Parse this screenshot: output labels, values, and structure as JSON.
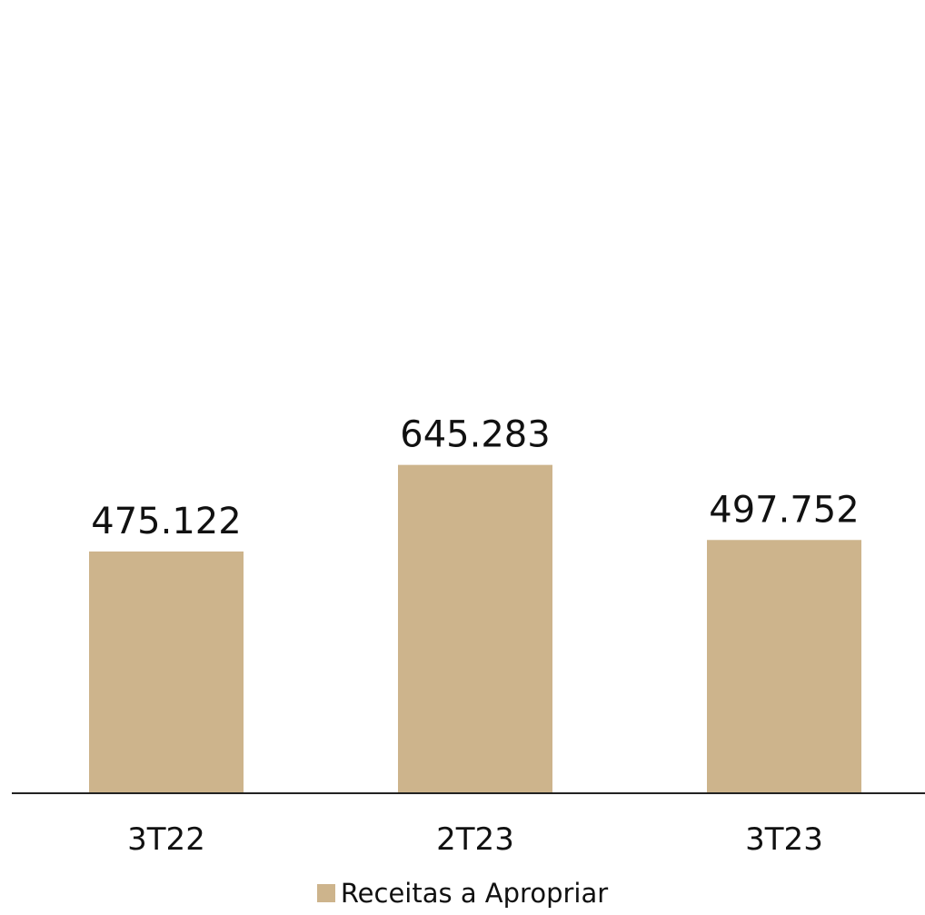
{
  "chart_data": {
    "type": "bar",
    "categories": [
      "3T22",
      "2T23",
      "3T23"
    ],
    "series": [
      {
        "name": "Receitas a Apropriar",
        "values": [
          475122,
          645283,
          497752
        ],
        "color": "#CDB48C"
      }
    ],
    "data_labels": [
      "475.122",
      "645.283",
      "497.752"
    ],
    "title": "",
    "xlabel": "",
    "ylabel": "",
    "ylim": [
      0,
      1000000
    ],
    "grid": false,
    "legend_position": "bottom-center",
    "axis_color": "#222222"
  }
}
